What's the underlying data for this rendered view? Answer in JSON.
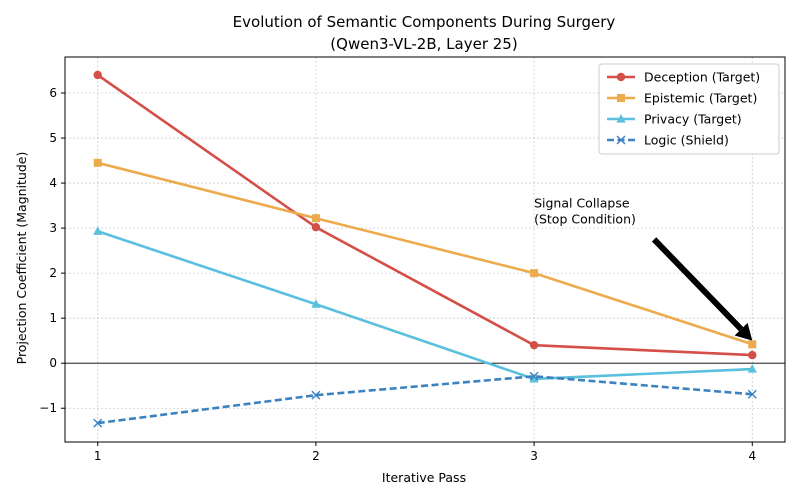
{
  "chart_data": {
    "type": "line",
    "title": "Evolution of Semantic Components During Surgery",
    "subtitle": "(Qwen3-VL-2B, Layer 25)",
    "xlabel": "Iterative Pass",
    "ylabel": "Projection Coefficient (Magnitude)",
    "x": [
      1,
      2,
      3,
      4
    ],
    "xlim": [
      0.85,
      4.15
    ],
    "ylim": [
      -1.75,
      6.8
    ],
    "xticks": [
      1,
      2,
      3,
      4
    ],
    "yticks": [
      -1,
      0,
      1,
      2,
      3,
      4,
      5,
      6
    ],
    "grid": true,
    "legend_position": "top-right",
    "zero_line": true,
    "series": [
      {
        "name": "Deception (Target)",
        "values": [
          6.4,
          3.02,
          0.4,
          0.18
        ],
        "color": "#d44f47",
        "marker": "circle",
        "dash": "solid"
      },
      {
        "name": "Epistemic (Target)",
        "values": [
          4.45,
          3.22,
          2.0,
          0.42
        ],
        "color": "#ecab4c",
        "marker": "square",
        "dash": "solid"
      },
      {
        "name": "Privacy (Target)",
        "values": [
          2.93,
          1.31,
          -0.35,
          -0.13
        ],
        "color": "#5bc0de",
        "marker": "triangle",
        "dash": "solid"
      },
      {
        "name": "Logic (Shield)",
        "values": [
          -1.33,
          -0.71,
          -0.29,
          -0.69
        ],
        "color": "#3c82c0",
        "marker": "x",
        "dash": "dashed"
      }
    ],
    "annotations": [
      {
        "text_lines": [
          "Signal Collapse",
          "(Stop Condition)"
        ],
        "text_x": 3.0,
        "text_y": 3.1,
        "arrow_from": [
          3.55,
          2.75
        ],
        "arrow_to": [
          4.0,
          0.5
        ]
      }
    ]
  }
}
